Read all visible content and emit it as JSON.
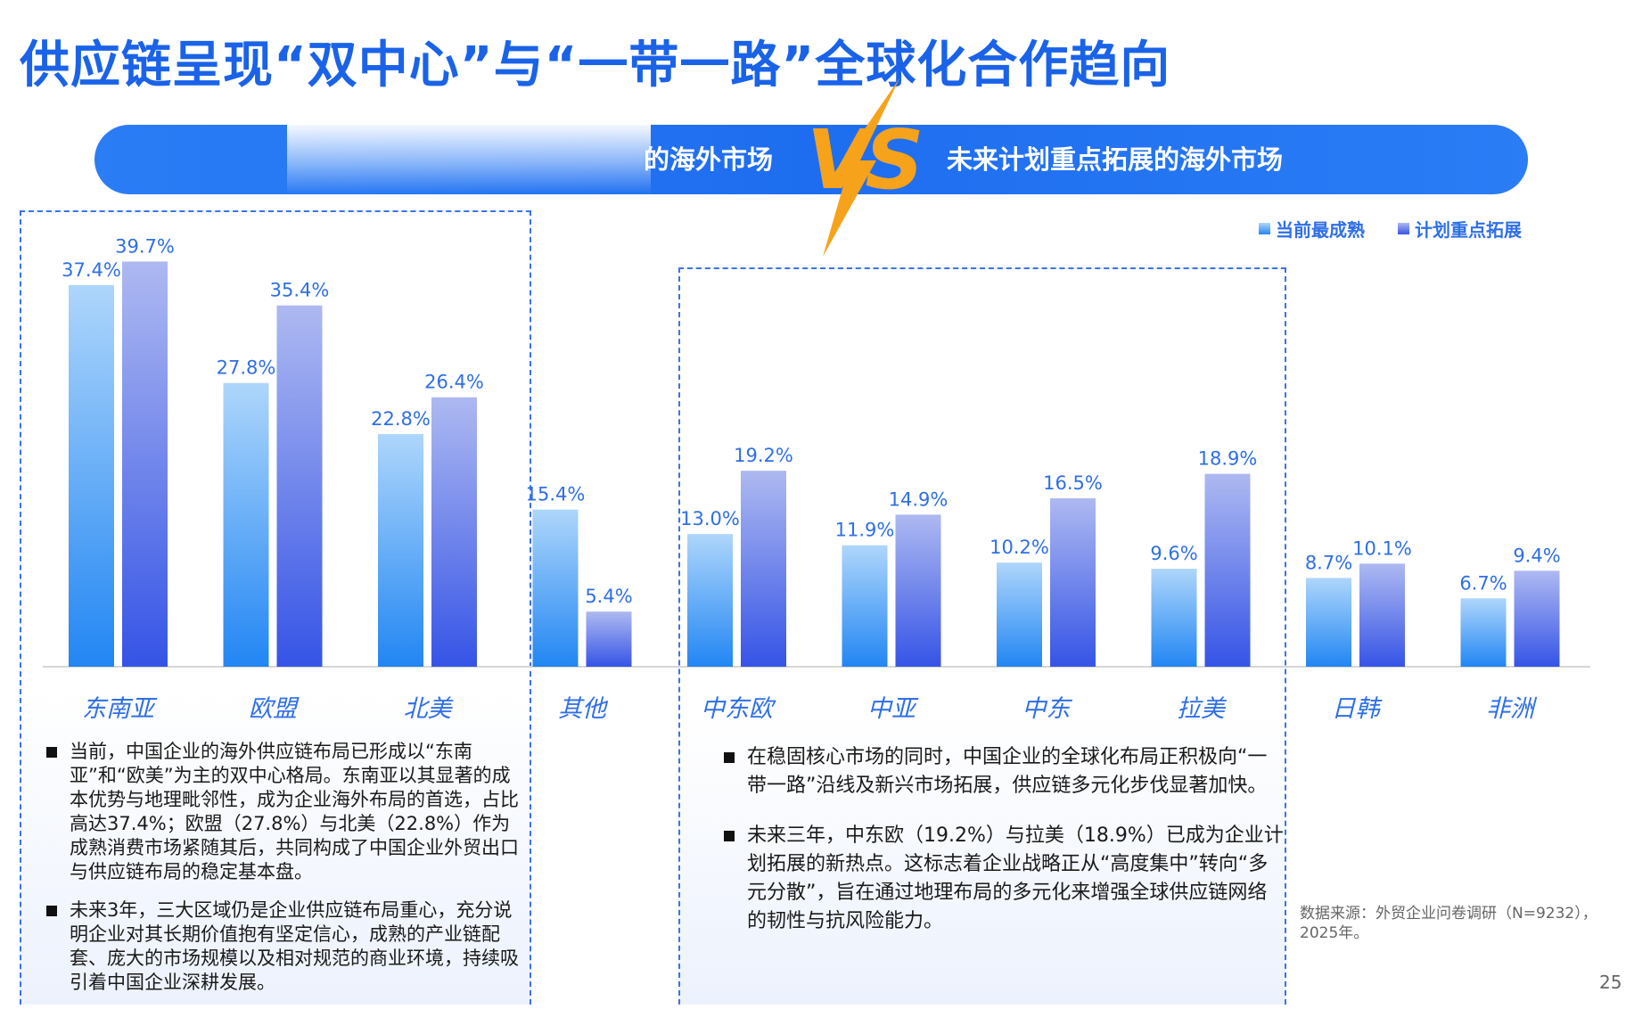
{
  "title": "供应链呈现“双中心”与“一带一路”全球化合作趋向",
  "banner": {
    "left_text": "的海外市场",
    "vs_text": "VS",
    "right_text": "未来计划重点拓展的海外市场"
  },
  "legend": {
    "current": "当前最成熟",
    "planned": "计划重点拓展"
  },
  "colors": {
    "current_top": "#aed6fb",
    "current_bottom": "#2286f3",
    "planned_top": "#aeb9f1",
    "planned_bottom": "#3554e6",
    "label": "#2f6fe6",
    "category": "#2f6fe6",
    "accent": "#f7a21b"
  },
  "chart_data": {
    "type": "bar",
    "categories": [
      "东南亚",
      "欧盟",
      "北美",
      "其他",
      "中东欧",
      "中亚",
      "中东",
      "拉美",
      "日韩",
      "非洲"
    ],
    "series": [
      {
        "name": "当前最成熟",
        "values": [
          37.4,
          27.8,
          22.8,
          15.4,
          13.0,
          11.9,
          10.2,
          9.6,
          8.7,
          6.7
        ]
      },
      {
        "name": "计划重点拓展",
        "values": [
          39.7,
          35.4,
          26.4,
          5.4,
          19.2,
          14.9,
          16.5,
          18.9,
          10.1,
          9.4
        ]
      }
    ],
    "labels": [
      [
        "37.4%",
        "27.8%",
        "22.8%",
        "15.4%",
        "13.0%",
        "11.9%",
        "10.2%",
        "9.6%",
        "8.7%",
        "6.7%"
      ],
      [
        "39.7%",
        "35.4%",
        "26.4%",
        "5.4%",
        "19.2%",
        "14.9%",
        "16.5%",
        "18.9%",
        "10.1%",
        "9.4%"
      ]
    ],
    "ylim": [
      0,
      40
    ],
    "legend_position": "top-right",
    "grid": false
  },
  "left_bullets": [
    "当前，中国企业的海外供应链布局已形成以“东南亚”和“欧美”为主的双中心格局。东南亚以其显著的成本优势与地理毗邻性，成为企业海外布局的首选，占比高达37.4%；欧盟（27.8%）与北美（22.8%）作为成熟消费市场紧随其后，共同构成了中国企业外贸出口与供应链布局的稳定基本盘。",
    "未来3年，三大区域仍是企业供应链布局重心，充分说明企业对其长期价值抱有坚定信心，成熟的产业链配套、庞大的市场规模以及相对规范的商业环境，持续吸引着中国企业深耕发展。"
  ],
  "mid_bullets": [
    "在稳固核心市场的同时，中国企业的全球化布局正积极向“一带一路”沿线及新兴市场拓展，供应链多元化步伐显著加快。",
    "未来三年，中东欧（19.2%）与拉美（18.9%）已成为企业计划拓展的新热点。这标志着企业战略正从“高度集中”转向“多元分散”，旨在通过地理布局的多元化来增强全球供应链网络的韧性与抗风险能力。"
  ],
  "source": "数据来源：外贸企业问卷调研（N=9232），2025年。",
  "page_number": "25"
}
